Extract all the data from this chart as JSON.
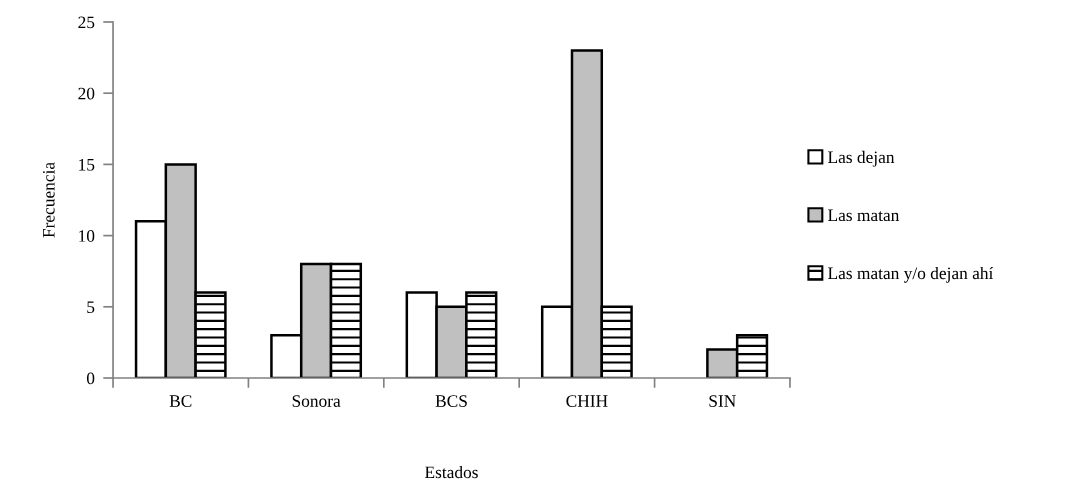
{
  "chart_data": {
    "type": "bar",
    "xlabel": "Estados",
    "ylabel": "Frecuencia",
    "categories": [
      "BC",
      "Sonora",
      "BCS",
      "CHIH",
      "SIN"
    ],
    "series": [
      {
        "name": "Las dejan",
        "color": "#ffffff",
        "values": [
          11,
          3,
          6,
          5,
          null
        ]
      },
      {
        "name": "Las matan",
        "color": "#c0c0c0",
        "values": [
          15,
          8,
          5,
          23,
          2
        ]
      },
      {
        "name": "Las matan y/o dejan ahí",
        "color": "#000000",
        "values": [
          6,
          8,
          6,
          5,
          3
        ]
      }
    ],
    "ylim": [
      0,
      25
    ],
    "yticks": [
      0,
      5,
      10,
      15,
      20,
      25
    ],
    "grid": false,
    "legend": "right"
  }
}
